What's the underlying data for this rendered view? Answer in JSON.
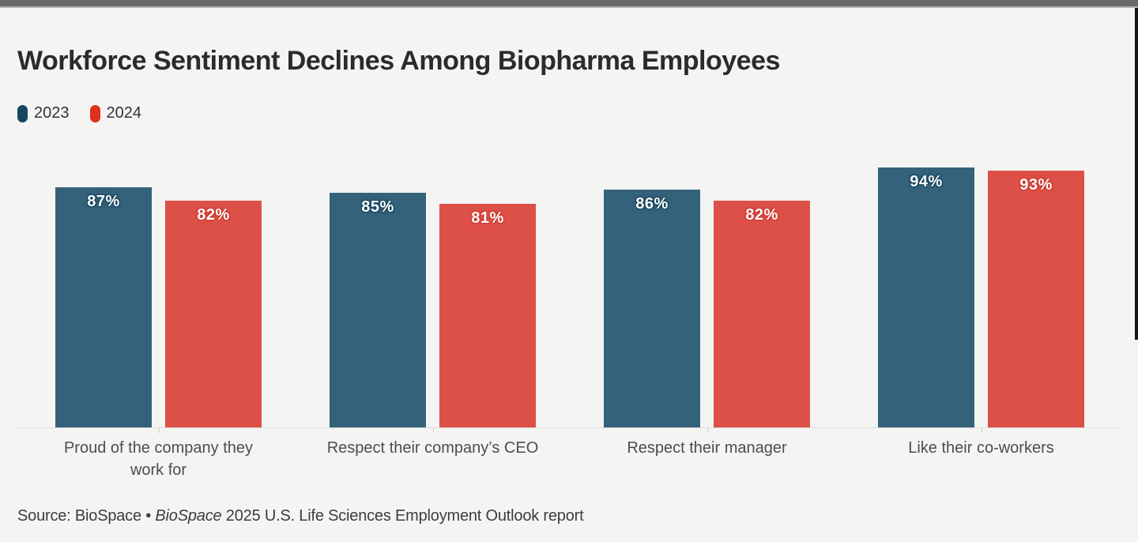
{
  "page": {
    "background": "#f4f4f2",
    "top_strip_color": "#696969",
    "scrollbar_color": "#161616"
  },
  "header": {
    "title": "Workforce Sentiment Declines Among Biopharma Employees"
  },
  "legend": {
    "items": [
      {
        "label": "2023",
        "color": "#15465e"
      },
      {
        "label": "2024",
        "color": "#e0301e"
      }
    ]
  },
  "chart_data": {
    "type": "bar",
    "title": "Workforce Sentiment Declines Among Biopharma Employees",
    "categories": [
      "Proud of the company they work for",
      "Respect their company’s CEO",
      "Respect their manager",
      "Like their co-workers"
    ],
    "series": [
      {
        "name": "2023",
        "color": "#35627b",
        "label_halo": "#16455c",
        "values": [
          87,
          85,
          86,
          94
        ]
      },
      {
        "name": "2024",
        "color": "#dd5048",
        "label_halo": "#cd3a30",
        "values": [
          82,
          81,
          82,
          93
        ]
      }
    ],
    "value_suffix": "%",
    "xlabel": "",
    "ylabel": "",
    "ylim": [
      0,
      100
    ],
    "grid": false,
    "legend_position": "top-left"
  },
  "source": {
    "prefix": "Source: BioSpace • ",
    "italic": "BioSpace",
    "suffix": " 2025 U.S. Life Sciences Employment Outlook report"
  }
}
